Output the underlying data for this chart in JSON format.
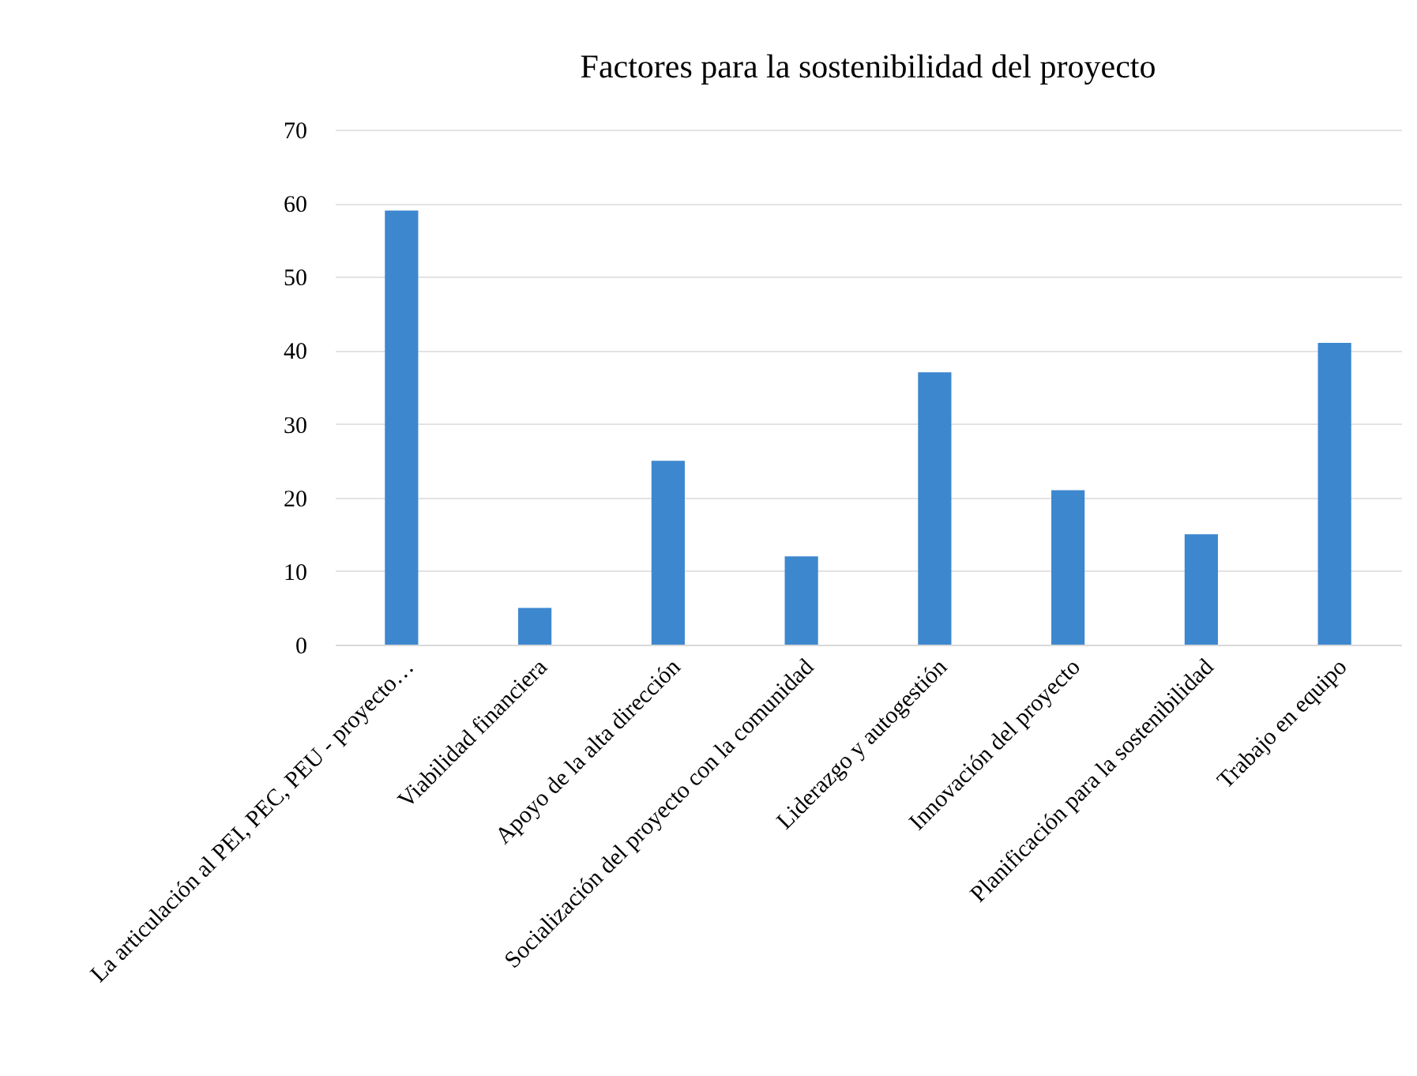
{
  "chart_data": {
    "type": "bar",
    "title": "Factores para la sostenibilidad del proyecto",
    "categories": [
      "La articulación al PEI, PEC, PEU - proyecto…",
      "Viabilidad financiera",
      "Apoyo de la alta dirección",
      "Socialización del proyecto con la comunidad",
      "Liderazgo y autogestión",
      "Innovación del proyecto",
      "Planificación para la sostenibilidad",
      "Trabajo en equipo"
    ],
    "values": [
      59,
      5,
      25,
      12,
      37,
      21,
      15,
      41
    ],
    "color": "#3d87cf",
    "ylim": [
      0,
      70
    ],
    "yticks": [
      0,
      10,
      20,
      30,
      40,
      50,
      60,
      70
    ],
    "grid": "y"
  }
}
